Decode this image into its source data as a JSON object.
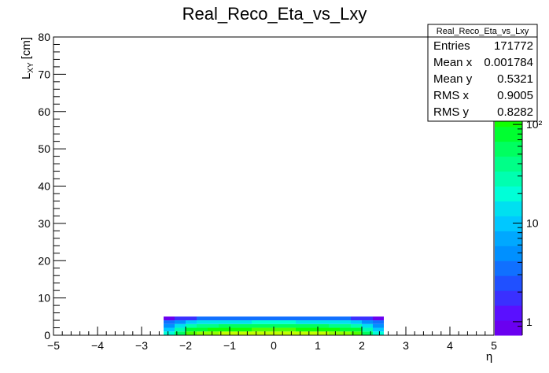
{
  "chart_data": {
    "type": "heatmap",
    "title": "Real_Reco_Eta_vs_Lxy",
    "x_label": "η",
    "y_label": {
      "main": "L",
      "sub": "XY",
      "unit": "[cm]"
    },
    "xlim": [
      -5,
      5
    ],
    "xticks": [
      {
        "value": -5,
        "label": "−5"
      },
      {
        "value": -4,
        "label": "−4"
      },
      {
        "value": -3,
        "label": "−3"
      },
      {
        "value": -2,
        "label": "−2"
      },
      {
        "value": -1,
        "label": "−1"
      },
      0,
      1,
      2,
      3,
      4,
      5
    ],
    "ylim": [
      0,
      80
    ],
    "yticks": [
      0,
      10,
      20,
      30,
      40,
      50,
      60,
      70,
      80
    ],
    "zlim": [
      0.73,
      770
    ],
    "zlog": true,
    "zticks": [
      1,
      10,
      {
        "value": 100,
        "label": "10²"
      }
    ],
    "palette": [
      "#6a00f0",
      "#5a10ff",
      "#3a30ff",
      "#2050ff",
      "#1070ff",
      "#0090ff",
      "#00a8ff",
      "#00c8ff",
      "#00e0f0",
      "#00ffd8",
      "#00ffb0",
      "#00ff88",
      "#00ff60",
      "#00ff30",
      "#10ff00",
      "#50ff00",
      "#90ff00",
      "#c0ff00",
      "#e0ff00",
      "#f0f000"
    ],
    "x_bins": [
      -2.5,
      -2.25,
      -2,
      -1.75,
      -1.5,
      -1.25,
      -1,
      -0.75,
      -0.5,
      -0.25,
      0,
      0.25,
      0.5,
      0.75,
      1,
      1.25,
      1.5,
      1.75,
      2,
      2.25,
      2.5
    ],
    "y_bins": [
      0,
      1,
      2,
      3,
      4,
      5
    ],
    "counts": [
      [
        20,
        60,
        150,
        200,
        250,
        280,
        300,
        310,
        320,
        320,
        320,
        320,
        310,
        300,
        280,
        250,
        200,
        150,
        60,
        20
      ],
      [
        10,
        30,
        70,
        90,
        110,
        120,
        130,
        130,
        140,
        140,
        140,
        140,
        130,
        130,
        120,
        110,
        90,
        70,
        30,
        10
      ],
      [
        5,
        12,
        30,
        40,
        45,
        50,
        55,
        55,
        60,
        60,
        60,
        60,
        55,
        55,
        50,
        45,
        40,
        30,
        12,
        5
      ],
      [
        3,
        5,
        10,
        12,
        14,
        15,
        16,
        16,
        17,
        17,
        17,
        17,
        16,
        16,
        15,
        14,
        12,
        10,
        5,
        3
      ],
      [
        1,
        2,
        2,
        3,
        3,
        3,
        3,
        3,
        3,
        3,
        3,
        3,
        3,
        3,
        3,
        3,
        3,
        2,
        2,
        1
      ]
    ],
    "stats": {
      "title": "Real_Reco_Eta_vs_Lxy",
      "rows": [
        [
          "Entries",
          171772
        ],
        [
          "Mean x",
          0.001784
        ],
        [
          "Mean y",
          0.5321
        ],
        [
          "RMS x",
          0.9005
        ],
        [
          "RMS y",
          0.8282
        ]
      ]
    }
  }
}
